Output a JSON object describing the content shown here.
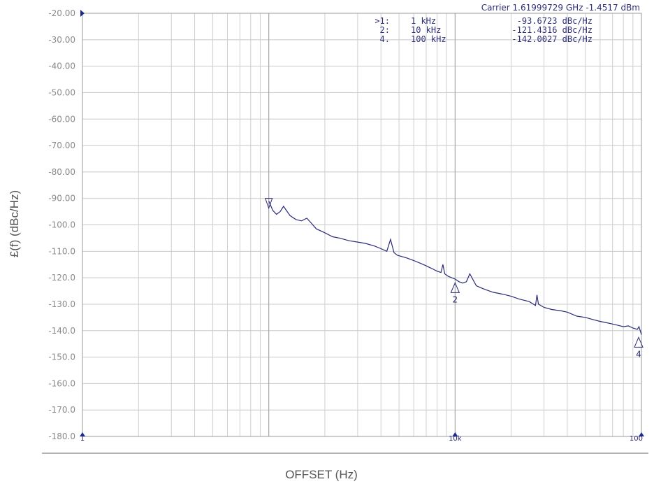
{
  "chart_data": {
    "type": "line",
    "title": "",
    "xlabel": "OFFSET (Hz)",
    "ylabel": "£(f) (dBc/Hz)",
    "xscale": "log",
    "xlim": [
      100,
      100000
    ],
    "ylim": [
      -180,
      -20
    ],
    "yticks": [
      "-20.00",
      "-30.00",
      "-40.00",
      "-50.00",
      "-60.00",
      "-70.00",
      "-80.00",
      "-90.00",
      "-100.0",
      "-110.0",
      "-120.0",
      "-130.0",
      "-140.0",
      "-150.0",
      "-160.0",
      "-170.0",
      "-180.0"
    ],
    "xtick_labels": [
      "1",
      "10k",
      "100"
    ],
    "grid": true,
    "carrier": "Carrier 1.61999729 GHz   -1.4517 dBm",
    "marker_table": [
      {
        "id": ">1:",
        "freq": "1 kHz",
        "value": "-93.6723 dBc/Hz"
      },
      {
        "id": "2:",
        "freq": "10 kHz",
        "value": "-121.4316 dBc/Hz"
      },
      {
        "id": "4.",
        "freq": "100 kHz",
        "value": "-142.0027 dBc/Hz"
      }
    ],
    "markers": [
      {
        "label": "",
        "x": 1000,
        "y": -93.7
      },
      {
        "label": "2",
        "x": 10000,
        "y": -121.4
      },
      {
        "label": "4",
        "x": 100000,
        "y": -142.0
      }
    ],
    "series": [
      {
        "color": "#2a2a7a",
        "x": [
          1000,
          1050,
          1100,
          1150,
          1200,
          1300,
          1400,
          1500,
          1600,
          1700,
          1800,
          2000,
          2200,
          2400,
          2700,
          3000,
          3300,
          3700,
          4000,
          4300,
          4500,
          4700,
          4900,
          5500,
          6000,
          6500,
          7000,
          7500,
          8000,
          8400,
          8600,
          8800,
          9200,
          10000,
          10500,
          11000,
          11500,
          12000,
          13000,
          14000,
          15000,
          16000,
          18000,
          20000,
          22000,
          25000,
          27000,
          27500,
          28000,
          30000,
          33000,
          37000,
          40000,
          45000,
          50000,
          55000,
          60000,
          65000,
          70000,
          75000,
          80000,
          85000,
          90000,
          95000,
          97000,
          100000
        ],
        "y": [
          -91,
          -94.5,
          -96,
          -95,
          -93,
          -96.5,
          -98,
          -98.5,
          -97.5,
          -99.5,
          -101.5,
          -103,
          -104.5,
          -105,
          -106,
          -106.5,
          -107,
          -108,
          -109,
          -110,
          -105.5,
          -110.5,
          -111.5,
          -112.5,
          -113.5,
          -114.5,
          -115.5,
          -116.5,
          -117.5,
          -118,
          -115,
          -118.5,
          -119.5,
          -120.5,
          -121.5,
          -122,
          -121.5,
          -118.5,
          -123,
          -124,
          -124.8,
          -125.5,
          -126.2,
          -127,
          -128,
          -129,
          -130.5,
          -126.5,
          -130,
          -131.2,
          -132,
          -132.5,
          -133,
          -134.5,
          -135,
          -135.8,
          -136.5,
          -137,
          -137.5,
          -138,
          -138.5,
          -138.2,
          -139,
          -139.5,
          -138.5,
          -141.5
        ]
      }
    ]
  }
}
